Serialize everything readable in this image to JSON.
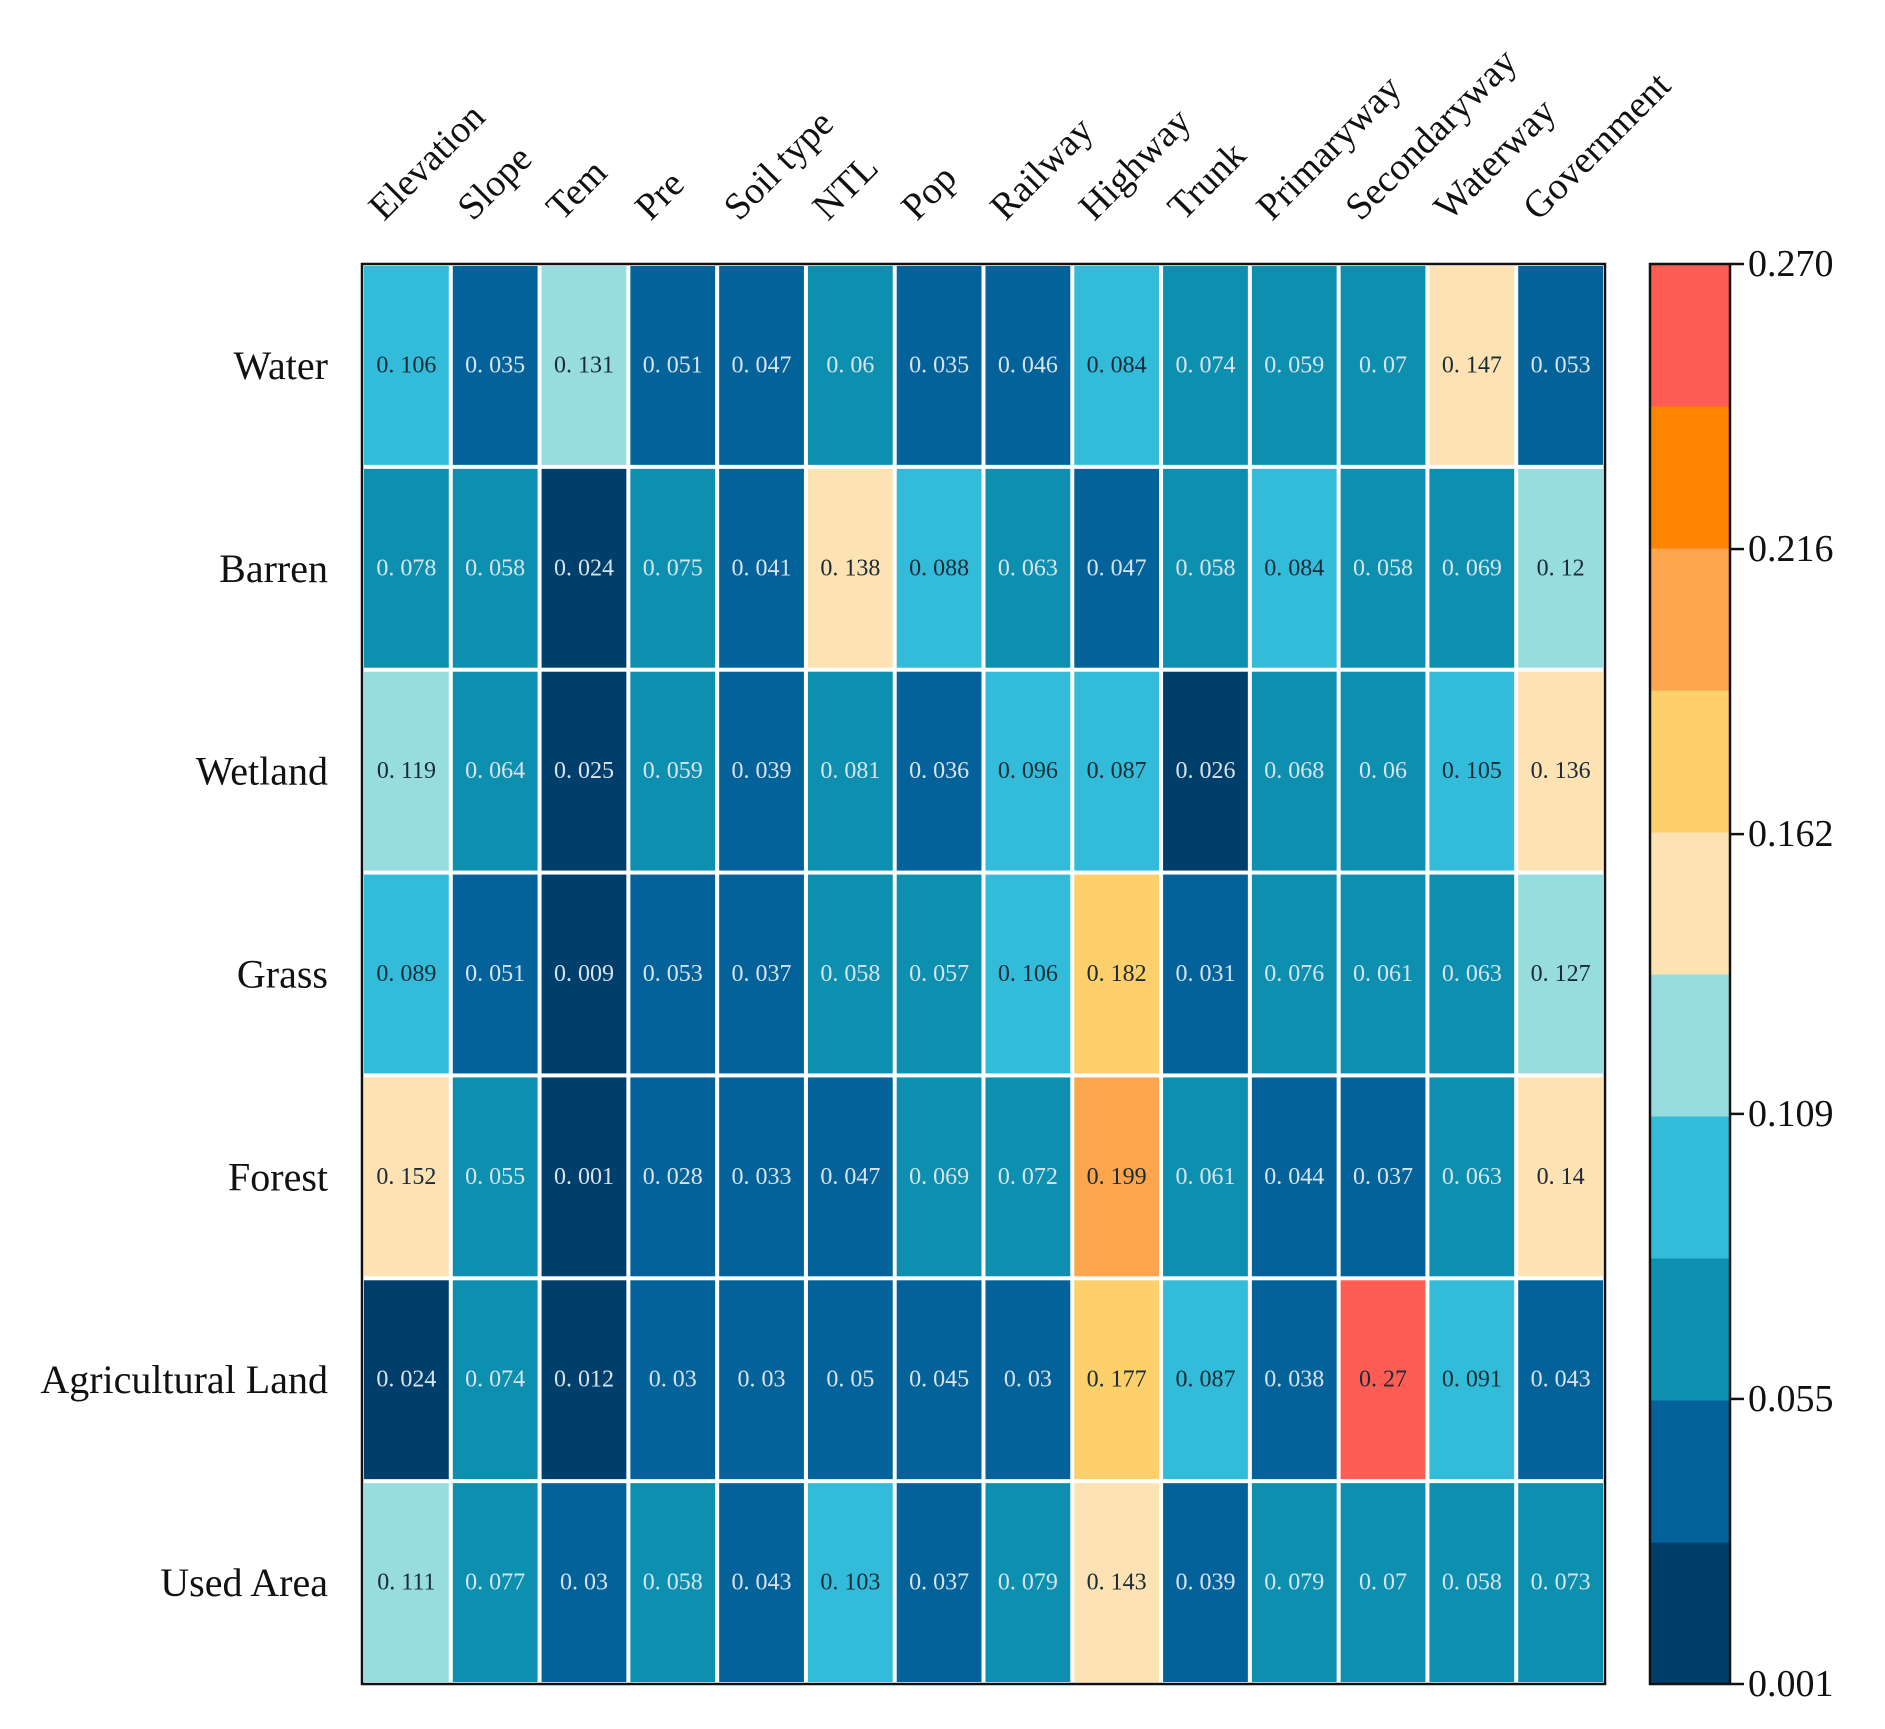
{
  "chart_data": {
    "type": "heatmap",
    "title": "",
    "columns": [
      "Elevation",
      "Slope",
      "Tem",
      "Pre",
      "Soil type",
      "NTL",
      "Pop",
      "Railway",
      "Highway",
      "Trunk",
      "Primaryway",
      "Secondaryway",
      "Waterway",
      "Government"
    ],
    "rows": [
      "Water",
      "Barren",
      "Wetland",
      "Grass",
      "Forest",
      "Agricultural Land",
      "Used Area"
    ],
    "values": [
      [
        0.106,
        0.035,
        0.131,
        0.051,
        0.047,
        0.06,
        0.035,
        0.046,
        0.084,
        0.074,
        0.059,
        0.07,
        0.147,
        0.053
      ],
      [
        0.078,
        0.058,
        0.024,
        0.075,
        0.041,
        0.138,
        0.088,
        0.063,
        0.047,
        0.058,
        0.084,
        0.058,
        0.069,
        0.12
      ],
      [
        0.119,
        0.064,
        0.025,
        0.059,
        0.039,
        0.081,
        0.036,
        0.096,
        0.087,
        0.026,
        0.068,
        0.06,
        0.105,
        0.136
      ],
      [
        0.089,
        0.051,
        0.009,
        0.053,
        0.037,
        0.058,
        0.057,
        0.106,
        0.182,
        0.031,
        0.076,
        0.061,
        0.063,
        0.127
      ],
      [
        0.152,
        0.055,
        0.001,
        0.028,
        0.033,
        0.047,
        0.069,
        0.072,
        0.199,
        0.061,
        0.044,
        0.037,
        0.063,
        0.14
      ],
      [
        0.024,
        0.074,
        0.012,
        0.03,
        0.03,
        0.05,
        0.045,
        0.03,
        0.177,
        0.087,
        0.038,
        0.27,
        0.091,
        0.043
      ],
      [
        0.111,
        0.077,
        0.03,
        0.058,
        0.043,
        0.103,
        0.037,
        0.079,
        0.143,
        0.039,
        0.079,
        0.07,
        0.058,
        0.073
      ]
    ],
    "value_labels": [
      [
        "0. 106",
        "0. 035",
        "0. 131",
        "0. 051",
        "0. 047",
        "0. 06",
        "0. 035",
        "0. 046",
        "0. 084",
        "0. 074",
        "0. 059",
        "0. 07",
        "0. 147",
        "0. 053"
      ],
      [
        "0. 078",
        "0. 058",
        "0. 024",
        "0. 075",
        "0. 041",
        "0. 138",
        "0. 088",
        "0. 063",
        "0. 047",
        "0. 058",
        "0. 084",
        "0. 058",
        "0. 069",
        "0. 12"
      ],
      [
        "0. 119",
        "0. 064",
        "0. 025",
        "0. 059",
        "0. 039",
        "0. 081",
        "0. 036",
        "0. 096",
        "0. 087",
        "0. 026",
        "0. 068",
        "0. 06",
        "0. 105",
        "0. 136"
      ],
      [
        "0. 089",
        "0. 051",
        "0. 009",
        "0. 053",
        "0. 037",
        "0. 058",
        "0. 057",
        "0. 106",
        "0. 182",
        "0. 031",
        "0. 076",
        "0. 061",
        "0. 063",
        "0. 127"
      ],
      [
        "0. 152",
        "0. 055",
        "0. 001",
        "0. 028",
        "0. 033",
        "0. 047",
        "0. 069",
        "0. 072",
        "0. 199",
        "0. 061",
        "0. 044",
        "0. 037",
        "0. 063",
        "0. 14"
      ],
      [
        "0. 024",
        "0. 074",
        "0. 012",
        "0. 03",
        "0. 03",
        "0. 05",
        "0. 045",
        "0. 03",
        "0. 177",
        "0. 087",
        "0. 038",
        "0. 27",
        "0. 091",
        "0. 043"
      ],
      [
        "0. 111",
        "0. 077",
        "0. 03",
        "0. 058",
        "0. 043",
        "0. 103",
        "0. 037",
        "0. 079",
        "0. 143",
        "0. 039",
        "0. 079",
        "0. 07",
        "0. 058",
        "0. 073"
      ]
    ],
    "colorbar": {
      "min": 0.001,
      "max": 0.27,
      "ticks": [
        0.001,
        0.055,
        0.109,
        0.162,
        0.216,
        0.27
      ],
      "tick_labels": [
        "0.001",
        "0.055",
        "0.109",
        "0.162",
        "0.216",
        "0.270"
      ],
      "colors": [
        "#003f6b",
        "#04629a",
        "#0d8fb0",
        "#33bcd9",
        "#97dde0",
        "#fde3b4",
        "#fdd06b",
        "#fca54c",
        "#fd8502",
        "#fe5d54"
      ]
    },
    "legend": "right"
  }
}
